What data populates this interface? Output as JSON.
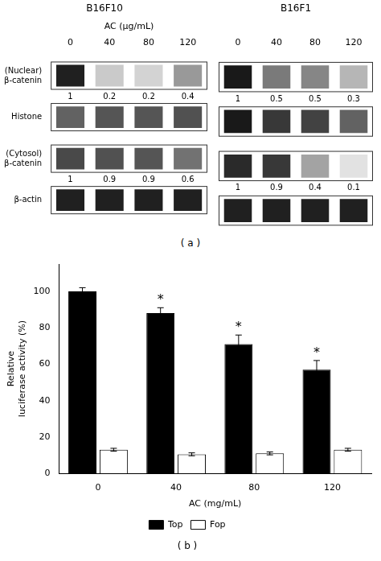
{
  "chart_data": [
    {
      "type": "heatmap",
      "title": "B16F10",
      "xlabel": "AC (μg/mL)",
      "subtitle": "( a )",
      "categories": [
        "0",
        "40",
        "80",
        "120"
      ],
      "rows": [
        "(Nuclear)\nβ-catenin",
        "Histone",
        "(Cytosol)\nβ-catenin",
        "β-actin"
      ],
      "cells": [
        [
          0.92,
          0.22,
          0.18,
          0.42
        ],
        [
          0.65,
          0.7,
          0.7,
          0.72
        ],
        [
          0.75,
          0.72,
          0.7,
          0.58
        ],
        [
          0.92,
          0.92,
          0.92,
          0.92
        ]
      ],
      "annotations": [
        {
          "row": "(Nuclear)\nβ-catenin",
          "texts": [
            "1",
            "0.2",
            "0.2",
            "0.4"
          ]
        },
        {
          "row": "(Cytosol)\nβ-catenin",
          "texts": [
            "1",
            "0.9",
            "0.9",
            "0.6"
          ]
        }
      ]
    },
    {
      "type": "heatmap",
      "title": "B16F1",
      "tick_labels": "x",
      "categories": [
        "0",
        "40",
        "80",
        "120"
      ],
      "rows": [
        "(Nuclear)\nβ-catenin",
        "Histone",
        "(Cytosol)\nβ-catenin",
        "β-actin"
      ],
      "cells": [
        [
          0.95,
          0.55,
          0.5,
          0.3
        ],
        [
          0.95,
          0.82,
          0.78,
          0.65
        ],
        [
          0.88,
          0.82,
          0.38,
          0.12
        ],
        [
          0.92,
          0.92,
          0.92,
          0.92
        ]
      ],
      "annotations": [
        {
          "row": "(Nuclear)\nβ-catenin",
          "texts": [
            "1",
            "0.5",
            "0.5",
            "0.3"
          ]
        },
        {
          "row": "(Cytosol)\nβ-catenin",
          "texts": [
            "1",
            "0.9",
            "0.4",
            "0.1"
          ]
        }
      ]
    },
    {
      "type": "bar",
      "subtitle": "( b )",
      "xlabel": "AC (mg/mL)",
      "ylabel": "Relative\nluciferase activity (%)",
      "categories": [
        "0",
        "40",
        "80",
        "120"
      ],
      "series": [
        {
          "name": "Top",
          "color": "#000000",
          "values": [
            100,
            88,
            71,
            57
          ],
          "errors": [
            2,
            3,
            5,
            5
          ]
        },
        {
          "name": "Fop",
          "color": "#ffffff",
          "values": [
            13,
            10.5,
            11,
            13
          ],
          "errors": [
            0.8,
            0.8,
            0.8,
            0.8
          ]
        }
      ],
      "ylim": [
        0,
        115
      ],
      "yticks": [
        0,
        20,
        40,
        60,
        80,
        100
      ],
      "grid": false,
      "legend": "bottom",
      "annotations": [
        {
          "category": "40",
          "series": "Top",
          "text": "*"
        },
        {
          "category": "80",
          "series": "Top",
          "text": "*"
        },
        {
          "category": "120",
          "series": "Top",
          "text": "*"
        }
      ]
    }
  ]
}
